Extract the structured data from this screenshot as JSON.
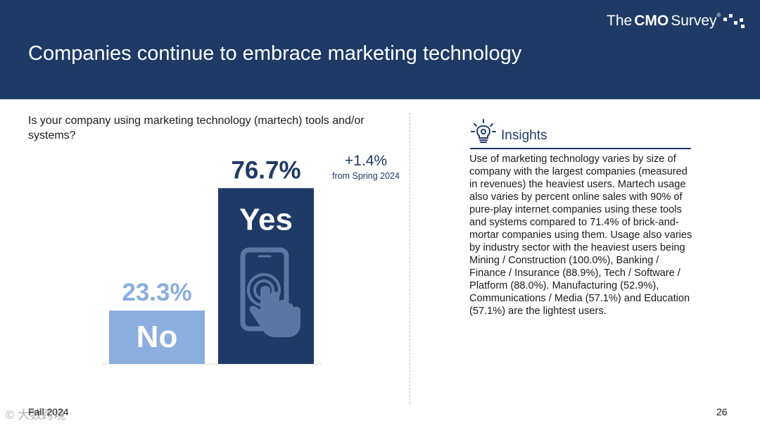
{
  "slide": {
    "title": "Companies continue to embrace marketing technology",
    "brand": {
      "the": "The",
      "cmo": "CMO",
      "survey": "Survey",
      "trademark": "®"
    },
    "question": "Is your company using marketing technology (martech) tools and/or systems?"
  },
  "colors": {
    "header_bg": "#1e3a66",
    "yes_bar": "#1e3a66",
    "no_bar": "#8aaedd",
    "yes_label": "#1e3a66",
    "no_label": "#8aaedd",
    "icon_fill": "#5c76a3"
  },
  "chart_data": {
    "type": "bar",
    "title": "Is your company using marketing technology (martech) tools and/or systems?",
    "categories": [
      "No",
      "Yes"
    ],
    "values": [
      23.3,
      76.7
    ],
    "value_labels": [
      "23.3%",
      "76.7%"
    ],
    "unit": "%",
    "ylim": [
      0,
      100
    ],
    "annotation": {
      "delta": "+1.4%",
      "note": "from Spring 2024"
    }
  },
  "insights": {
    "icon": "lightbulb-icon",
    "title": "Insights",
    "body": "Use of marketing technology varies by size of company with the largest companies (measured in revenues) the heaviest users. Martech usage also varies by percent online sales with 90% of pure-play internet companies using these tools and systems compared to 71.4% of brick-and-mortar companies using them. Usage also varies by industry sector with the heaviest users being Mining / Construction (100.0%), Banking / Finance / Insurance (88.9%), Tech / Software / Platform (88.0%). Manufacturing (52.9%), Communications / Media (57.1%) and Education (57.1%) are the lightest users."
  },
  "footer": {
    "season": "Fall 2024",
    "page": "26",
    "watermark": "© 大数跨境"
  }
}
